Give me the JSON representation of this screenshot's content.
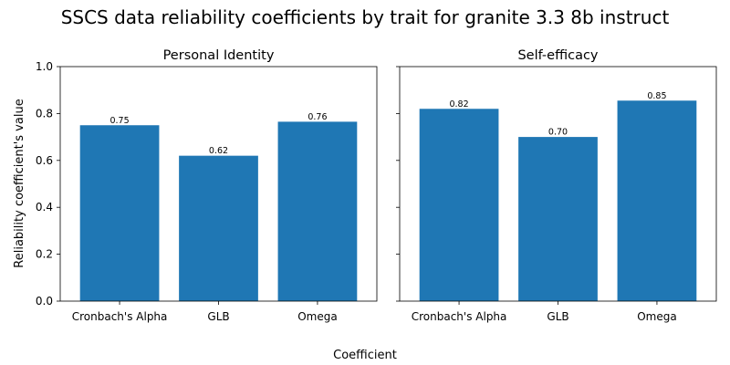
{
  "title": "SSCS data reliability coefficients by trait for granite 3.3 8b instruct",
  "xlabel": "Coefficient",
  "ylabel": "Reliability coefficient's value",
  "colors": {
    "bar": "#1f77b4"
  },
  "chart_data": [
    {
      "type": "bar",
      "title": "Personal Identity",
      "categories": [
        "Cronbach's Alpha",
        "GLB",
        "Omega"
      ],
      "values": [
        0.75,
        0.62,
        0.765
      ],
      "value_labels": [
        "0.75",
        "0.62",
        "0.76"
      ],
      "ylim": [
        0,
        1
      ],
      "yticks": [
        "0.0",
        "0.2",
        "0.4",
        "0.6",
        "0.8",
        "1.0"
      ],
      "grid": false
    },
    {
      "type": "bar",
      "title": "Self-efficacy",
      "categories": [
        "Cronbach's Alpha",
        "GLB",
        "Omega"
      ],
      "values": [
        0.82,
        0.7,
        0.855
      ],
      "value_labels": [
        "0.82",
        "0.70",
        "0.85"
      ],
      "ylim": [
        0,
        1
      ],
      "yticks": [
        "0.0",
        "0.2",
        "0.4",
        "0.6",
        "0.8",
        "1.0"
      ],
      "grid": false
    }
  ]
}
